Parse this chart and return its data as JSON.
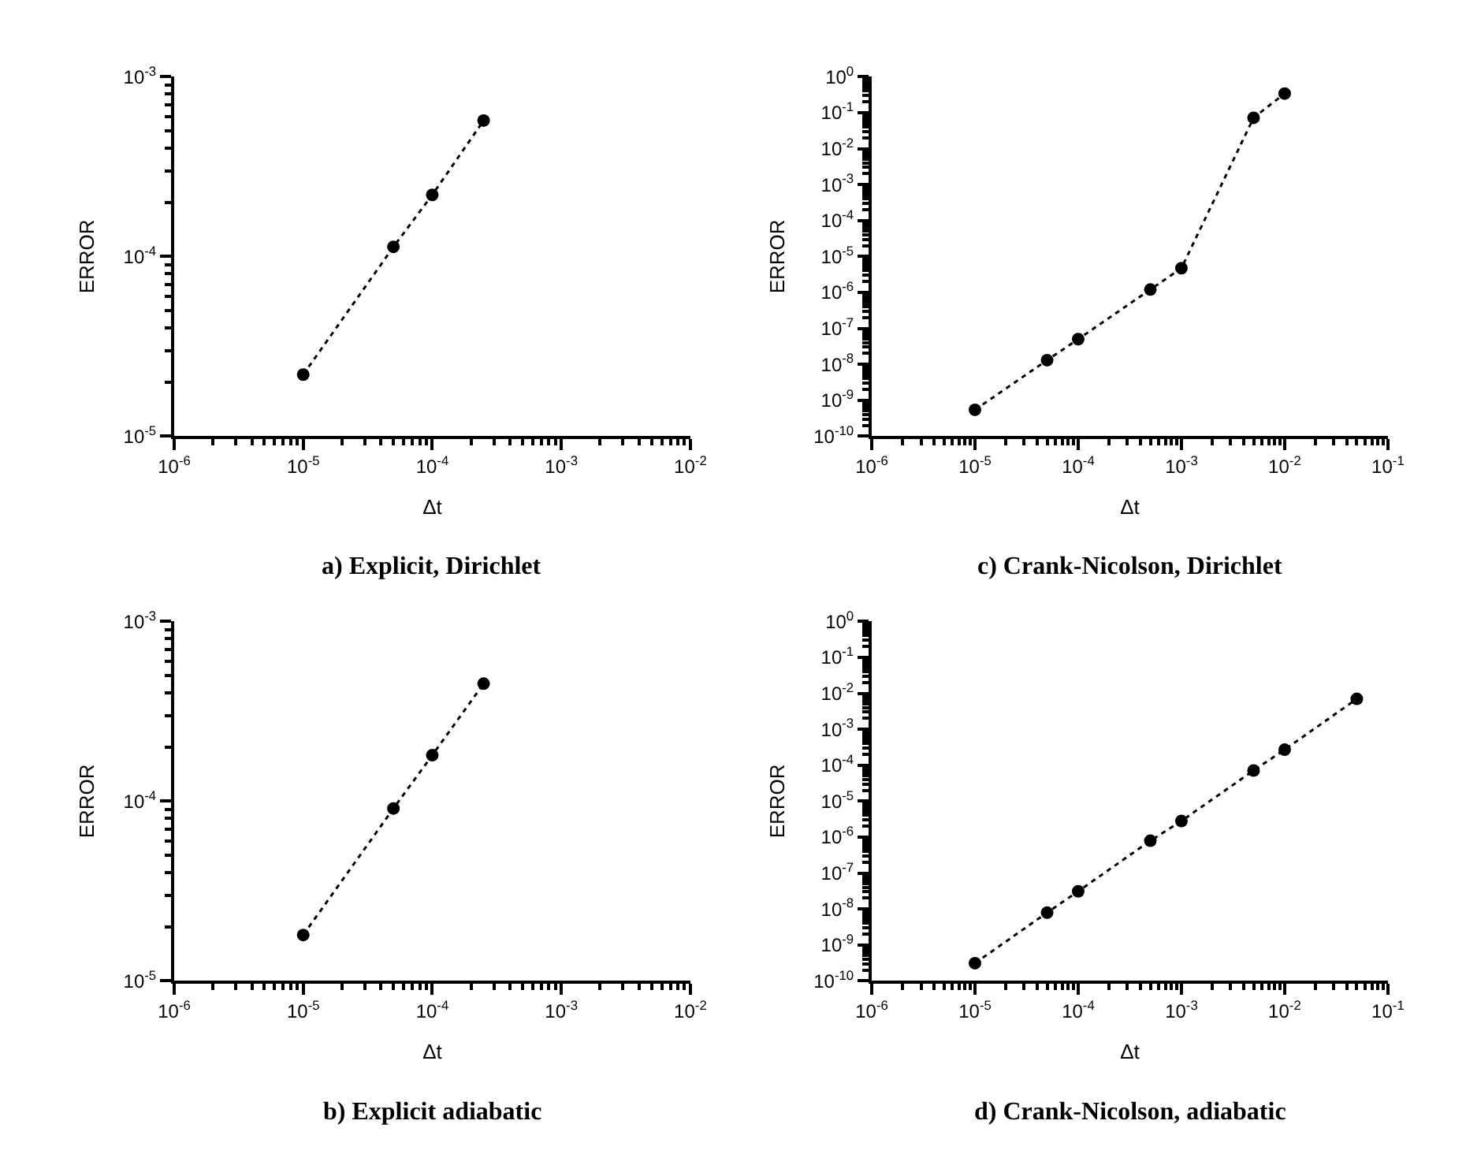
{
  "chart_data": [
    {
      "type": "line",
      "title": "a) Explicit, Dirichlet",
      "xlabel": "Δt",
      "ylabel": "ERROR",
      "log": "xy",
      "grid": false,
      "marker": "circle",
      "line_style": "dotted",
      "x": [
        1e-05,
        5e-05,
        0.0001,
        0.00025
      ],
      "series": [
        {
          "color": "#000000",
          "values": [
            2.2e-05,
            0.000113,
            0.00022,
            0.00057
          ]
        }
      ],
      "xlim": [
        1e-06,
        0.01
      ],
      "ylim": [
        1e-05,
        0.001
      ],
      "xticks": [
        {
          "value": 1e-06,
          "label": "10$^{-6}$"
        },
        {
          "value": 1e-05,
          "label": "10$^{-5}$"
        },
        {
          "value": 0.0001,
          "label": "10$^{-4}$"
        },
        {
          "value": 0.001,
          "label": "10$^{-3}$"
        },
        {
          "value": 0.01,
          "label": "10$^{-2}$"
        }
      ],
      "yticks": [
        {
          "value": 1e-05,
          "label": "10$^{-5}$"
        },
        {
          "value": 0.0001,
          "label": "10$^{-4}$"
        },
        {
          "value": 0.001,
          "label": "10$^{-3}$"
        }
      ]
    },
    {
      "type": "line",
      "title": "c) Crank-Nicolson, Dirichlet",
      "xlabel": "Δt",
      "ylabel": "ERROR",
      "log": "xy",
      "grid": false,
      "marker": "circle",
      "line_style": "dotted",
      "x": [
        1e-05,
        5e-05,
        0.0001,
        0.0005,
        0.001,
        0.005,
        0.01
      ],
      "series": [
        {
          "color": "#000000",
          "values": [
            5.4e-10,
            1.3e-08,
            5e-08,
            1.2e-06,
            4.7e-06,
            0.072,
            0.34
          ]
        }
      ],
      "xlim": [
        1e-06,
        0.1
      ],
      "ylim": [
        1e-10,
        1
      ],
      "xticks": [
        {
          "value": 1e-06,
          "label": "10$^{-6}$"
        },
        {
          "value": 1e-05,
          "label": "10$^{-5}$"
        },
        {
          "value": 0.0001,
          "label": "10$^{-4}$"
        },
        {
          "value": 0.001,
          "label": "10$^{-3}$"
        },
        {
          "value": 0.01,
          "label": "10$^{-2}$"
        },
        {
          "value": 0.1,
          "label": "10$^{-1}$"
        }
      ],
      "yticks": [
        {
          "value": 1e-10,
          "label": "10$^{-10}$"
        },
        {
          "value": 1e-09,
          "label": "10$^{-9}$"
        },
        {
          "value": 1e-08,
          "label": "10$^{-8}$"
        },
        {
          "value": 1e-07,
          "label": "10$^{-7}$"
        },
        {
          "value": 1e-06,
          "label": "10$^{-6}$"
        },
        {
          "value": 1e-05,
          "label": "10$^{-5}$"
        },
        {
          "value": 0.0001,
          "label": "10$^{-4}$"
        },
        {
          "value": 0.001,
          "label": "10$^{-3}$"
        },
        {
          "value": 0.01,
          "label": "10$^{-2}$"
        },
        {
          "value": 0.1,
          "label": "10$^{-1}$"
        },
        {
          "value": 1,
          "label": "10$^{0}$"
        }
      ]
    },
    {
      "type": "line",
      "title": "b) Explicit adiabatic",
      "xlabel": "Δt",
      "ylabel": "ERROR",
      "log": "xy",
      "grid": false,
      "marker": "circle",
      "line_style": "dotted",
      "x": [
        1e-05,
        5e-05,
        0.0001,
        0.00025
      ],
      "series": [
        {
          "color": "#000000",
          "values": [
            1.8e-05,
            9.1e-05,
            0.00018,
            0.00045
          ]
        }
      ],
      "xlim": [
        1e-06,
        0.01
      ],
      "ylim": [
        1e-05,
        0.001
      ],
      "xticks": [
        {
          "value": 1e-06,
          "label": "10$^{-6}$"
        },
        {
          "value": 1e-05,
          "label": "10$^{-5}$"
        },
        {
          "value": 0.0001,
          "label": "10$^{-4}$"
        },
        {
          "value": 0.001,
          "label": "10$^{-3}$"
        },
        {
          "value": 0.01,
          "label": "10$^{-2}$"
        }
      ],
      "yticks": [
        {
          "value": 1e-05,
          "label": "10$^{-5}$"
        },
        {
          "value": 0.0001,
          "label": "10$^{-4}$"
        },
        {
          "value": 0.001,
          "label": "10$^{-3}$"
        }
      ]
    },
    {
      "type": "line",
      "title": "d) Crank-Nicolson, adiabatic",
      "xlabel": "Δt",
      "ylabel": "ERROR",
      "log": "xy",
      "grid": false,
      "marker": "circle",
      "line_style": "dotted",
      "x": [
        1e-05,
        5e-05,
        0.0001,
        0.0005,
        0.001,
        0.005,
        0.01,
        0.05
      ],
      "series": [
        {
          "color": "#000000",
          "values": [
            3.1e-10,
            7.9e-09,
            3.1e-08,
            7.9e-07,
            2.8e-06,
            7.1e-05,
            0.00027,
            0.007
          ]
        }
      ],
      "xlim": [
        1e-06,
        0.1
      ],
      "ylim": [
        1e-10,
        1
      ],
      "xticks": [
        {
          "value": 1e-06,
          "label": "10$^{-6}$"
        },
        {
          "value": 1e-05,
          "label": "10$^{-5}$"
        },
        {
          "value": 0.0001,
          "label": "10$^{-4}$"
        },
        {
          "value": 0.001,
          "label": "10$^{-3}$"
        },
        {
          "value": 0.01,
          "label": "10$^{-2}$"
        },
        {
          "value": 0.1,
          "label": "10$^{-1}$"
        }
      ],
      "yticks": [
        {
          "value": 1e-10,
          "label": "10$^{-10}$"
        },
        {
          "value": 1e-09,
          "label": "10$^{-9}$"
        },
        {
          "value": 1e-08,
          "label": "10$^{-8}$"
        },
        {
          "value": 1e-07,
          "label": "10$^{-7}$"
        },
        {
          "value": 1e-06,
          "label": "10$^{-6}$"
        },
        {
          "value": 1e-05,
          "label": "10$^{-5}$"
        },
        {
          "value": 0.0001,
          "label": "10$^{-4}$"
        },
        {
          "value": 0.001,
          "label": "10$^{-3}$"
        },
        {
          "value": 0.01,
          "label": "10$^{-2}$"
        },
        {
          "value": 0.1,
          "label": "10$^{-1}$"
        },
        {
          "value": 1,
          "label": "10$^{0}$"
        }
      ]
    }
  ]
}
